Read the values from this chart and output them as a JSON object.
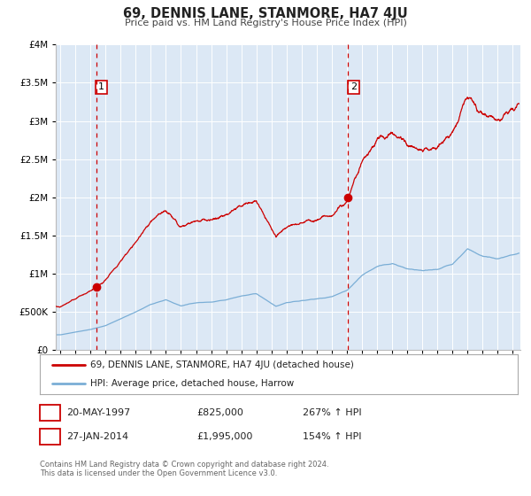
{
  "title": "69, DENNIS LANE, STANMORE, HA7 4JU",
  "subtitle": "Price paid vs. HM Land Registry's House Price Index (HPI)",
  "red_label": "69, DENNIS LANE, STANMORE, HA7 4JU (detached house)",
  "blue_label": "HPI: Average price, detached house, Harrow",
  "sale1_date": "20-MAY-1997",
  "sale1_price": 825000,
  "sale1_pct": "267%",
  "sale1_year": 1997.38,
  "sale2_date": "27-JAN-2014",
  "sale2_price": 1995000,
  "sale2_pct": "154%",
  "sale2_year": 2014.08,
  "ylim_max": 4000000,
  "xlim_min": 1994.7,
  "xlim_max": 2025.5,
  "background_color": "#dce8f5",
  "grid_color": "#ffffff",
  "red_color": "#cc0000",
  "blue_color": "#7aaed6",
  "footer_text": "Contains HM Land Registry data © Crown copyright and database right 2024.\nThis data is licensed under the Open Government Licence v3.0."
}
